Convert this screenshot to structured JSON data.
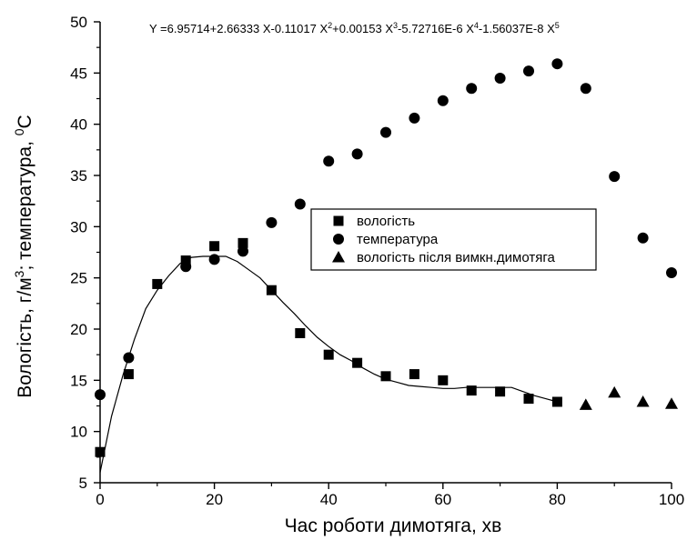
{
  "chart_data": {
    "type": "scatter",
    "title": "",
    "equation": {
      "prefix": "Y =6.95714+2.66333 X-0.11017 X",
      "parts": [
        {
          "sup": "2",
          "text": "+0.00153 X"
        },
        {
          "sup": "3",
          "text": "-5.72716E-6 X"
        },
        {
          "sup": "4",
          "text": "-1.56037E-8 X"
        },
        {
          "sup": "5",
          "text": ""
        }
      ]
    },
    "xlabel": "Час роботи димотяга, хв",
    "ylabel": {
      "before": "Вологість, г/м",
      "sup1": "3",
      "middle": "; температура, ",
      "sup2": "0",
      "after": "C"
    },
    "xlim": [
      0,
      100
    ],
    "ylim": [
      5,
      50
    ],
    "xticks": [
      "0",
      "20",
      "40",
      "60",
      "80",
      "100"
    ],
    "yticks": [
      "5",
      "10",
      "15",
      "20",
      "25",
      "30",
      "35",
      "40",
      "45",
      "50"
    ],
    "grid": false,
    "legend_position": "center-right",
    "series": [
      {
        "name": "вологість",
        "marker": "square",
        "x": [
          0,
          5,
          10,
          15,
          20,
          25,
          30,
          35,
          40,
          45,
          50,
          55,
          60,
          65,
          70,
          75,
          80
        ],
        "y": [
          8.0,
          15.6,
          24.4,
          26.7,
          28.1,
          28.4,
          23.8,
          19.6,
          17.5,
          16.7,
          15.4,
          15.6,
          15.0,
          14.0,
          13.9,
          13.2,
          12.9
        ]
      },
      {
        "name": "температура",
        "marker": "circle",
        "x": [
          0,
          5,
          15,
          20,
          25,
          30,
          35,
          40,
          45,
          50,
          55,
          60,
          65,
          70,
          75,
          80,
          85,
          90,
          95,
          100
        ],
        "y": [
          13.6,
          17.2,
          26.1,
          26.8,
          27.6,
          30.4,
          32.2,
          36.4,
          37.1,
          39.2,
          40.6,
          42.3,
          43.5,
          44.5,
          45.2,
          45.9,
          43.5,
          34.9,
          28.9,
          25.5
        ]
      },
      {
        "name": "вологість після вимкн.димотяга",
        "marker": "triangle",
        "x": [
          85,
          90,
          95,
          100
        ],
        "y": [
          12.6,
          13.8,
          12.9,
          12.7
        ]
      }
    ],
    "fit_line": {
      "x": [
        0,
        2,
        4,
        6,
        8,
        10,
        12,
        14,
        16,
        18,
        20,
        22,
        24,
        26,
        28,
        30,
        32,
        34,
        36,
        38,
        40,
        42,
        44,
        46,
        48,
        50,
        52,
        54,
        56,
        58,
        60,
        62,
        64,
        66,
        68,
        70,
        72,
        74,
        76,
        78,
        80
      ],
      "y": [
        6.0,
        11.5,
        15.5,
        19.0,
        22.0,
        23.8,
        25.2,
        26.4,
        27.0,
        27.1,
        27.1,
        27.1,
        26.6,
        25.8,
        25.0,
        23.8,
        22.6,
        21.5,
        20.3,
        19.2,
        18.3,
        17.5,
        16.9,
        16.2,
        15.6,
        15.1,
        14.8,
        14.5,
        14.4,
        14.3,
        14.2,
        14.2,
        14.3,
        14.3,
        14.3,
        14.3,
        14.3,
        13.9,
        13.5,
        13.2,
        12.9
      ]
    }
  }
}
